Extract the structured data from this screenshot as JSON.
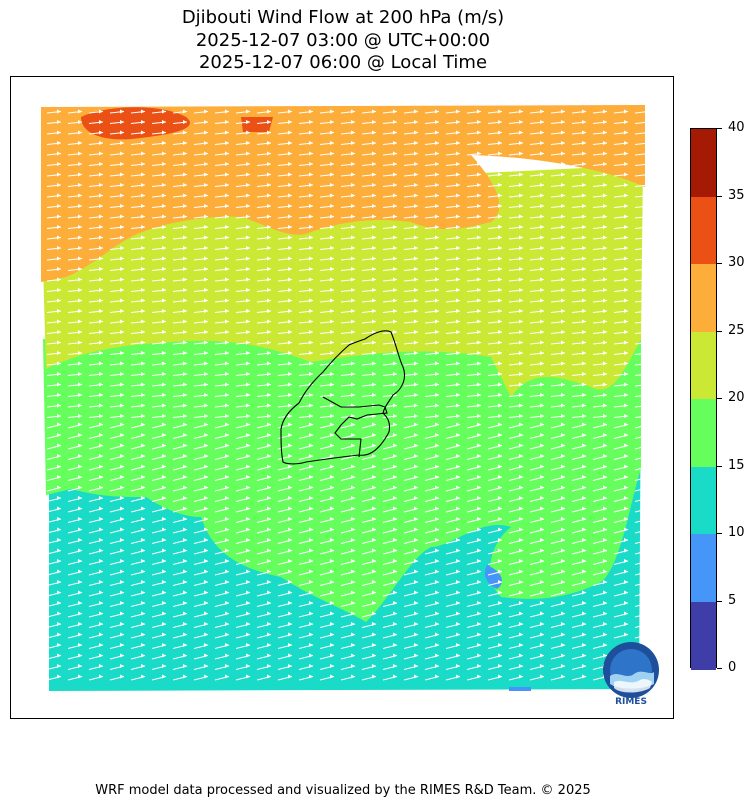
{
  "title": {
    "line1": "Djibouti Wind Flow at 200 hPa (m/s)",
    "line2": "2025-12-07 03:00 @ UTC+00:00",
    "line3": "2025-12-07 06:00 @ Local Time"
  },
  "colorbar": {
    "ticks": [
      "40",
      "35",
      "30",
      "25",
      "20",
      "15",
      "10",
      "5",
      "0"
    ],
    "bands": [
      {
        "range": "35-40",
        "color": "#a51a05"
      },
      {
        "range": "30-35",
        "color": "#eb5015"
      },
      {
        "range": "25-30",
        "color": "#fdad3a"
      },
      {
        "range": "20-25",
        "color": "#cbe835"
      },
      {
        "range": "15-20",
        "color": "#66fe5c"
      },
      {
        "range": "10-15",
        "color": "#1adbc7"
      },
      {
        "range": "5-10",
        "color": "#4696fa"
      },
      {
        "range": "0-5",
        "color": "#3f3ea9"
      }
    ]
  },
  "logo": {
    "text": "RIMES"
  },
  "footer": "WRF model data processed and visualized by the RIMES R&D Team. © 2025"
}
